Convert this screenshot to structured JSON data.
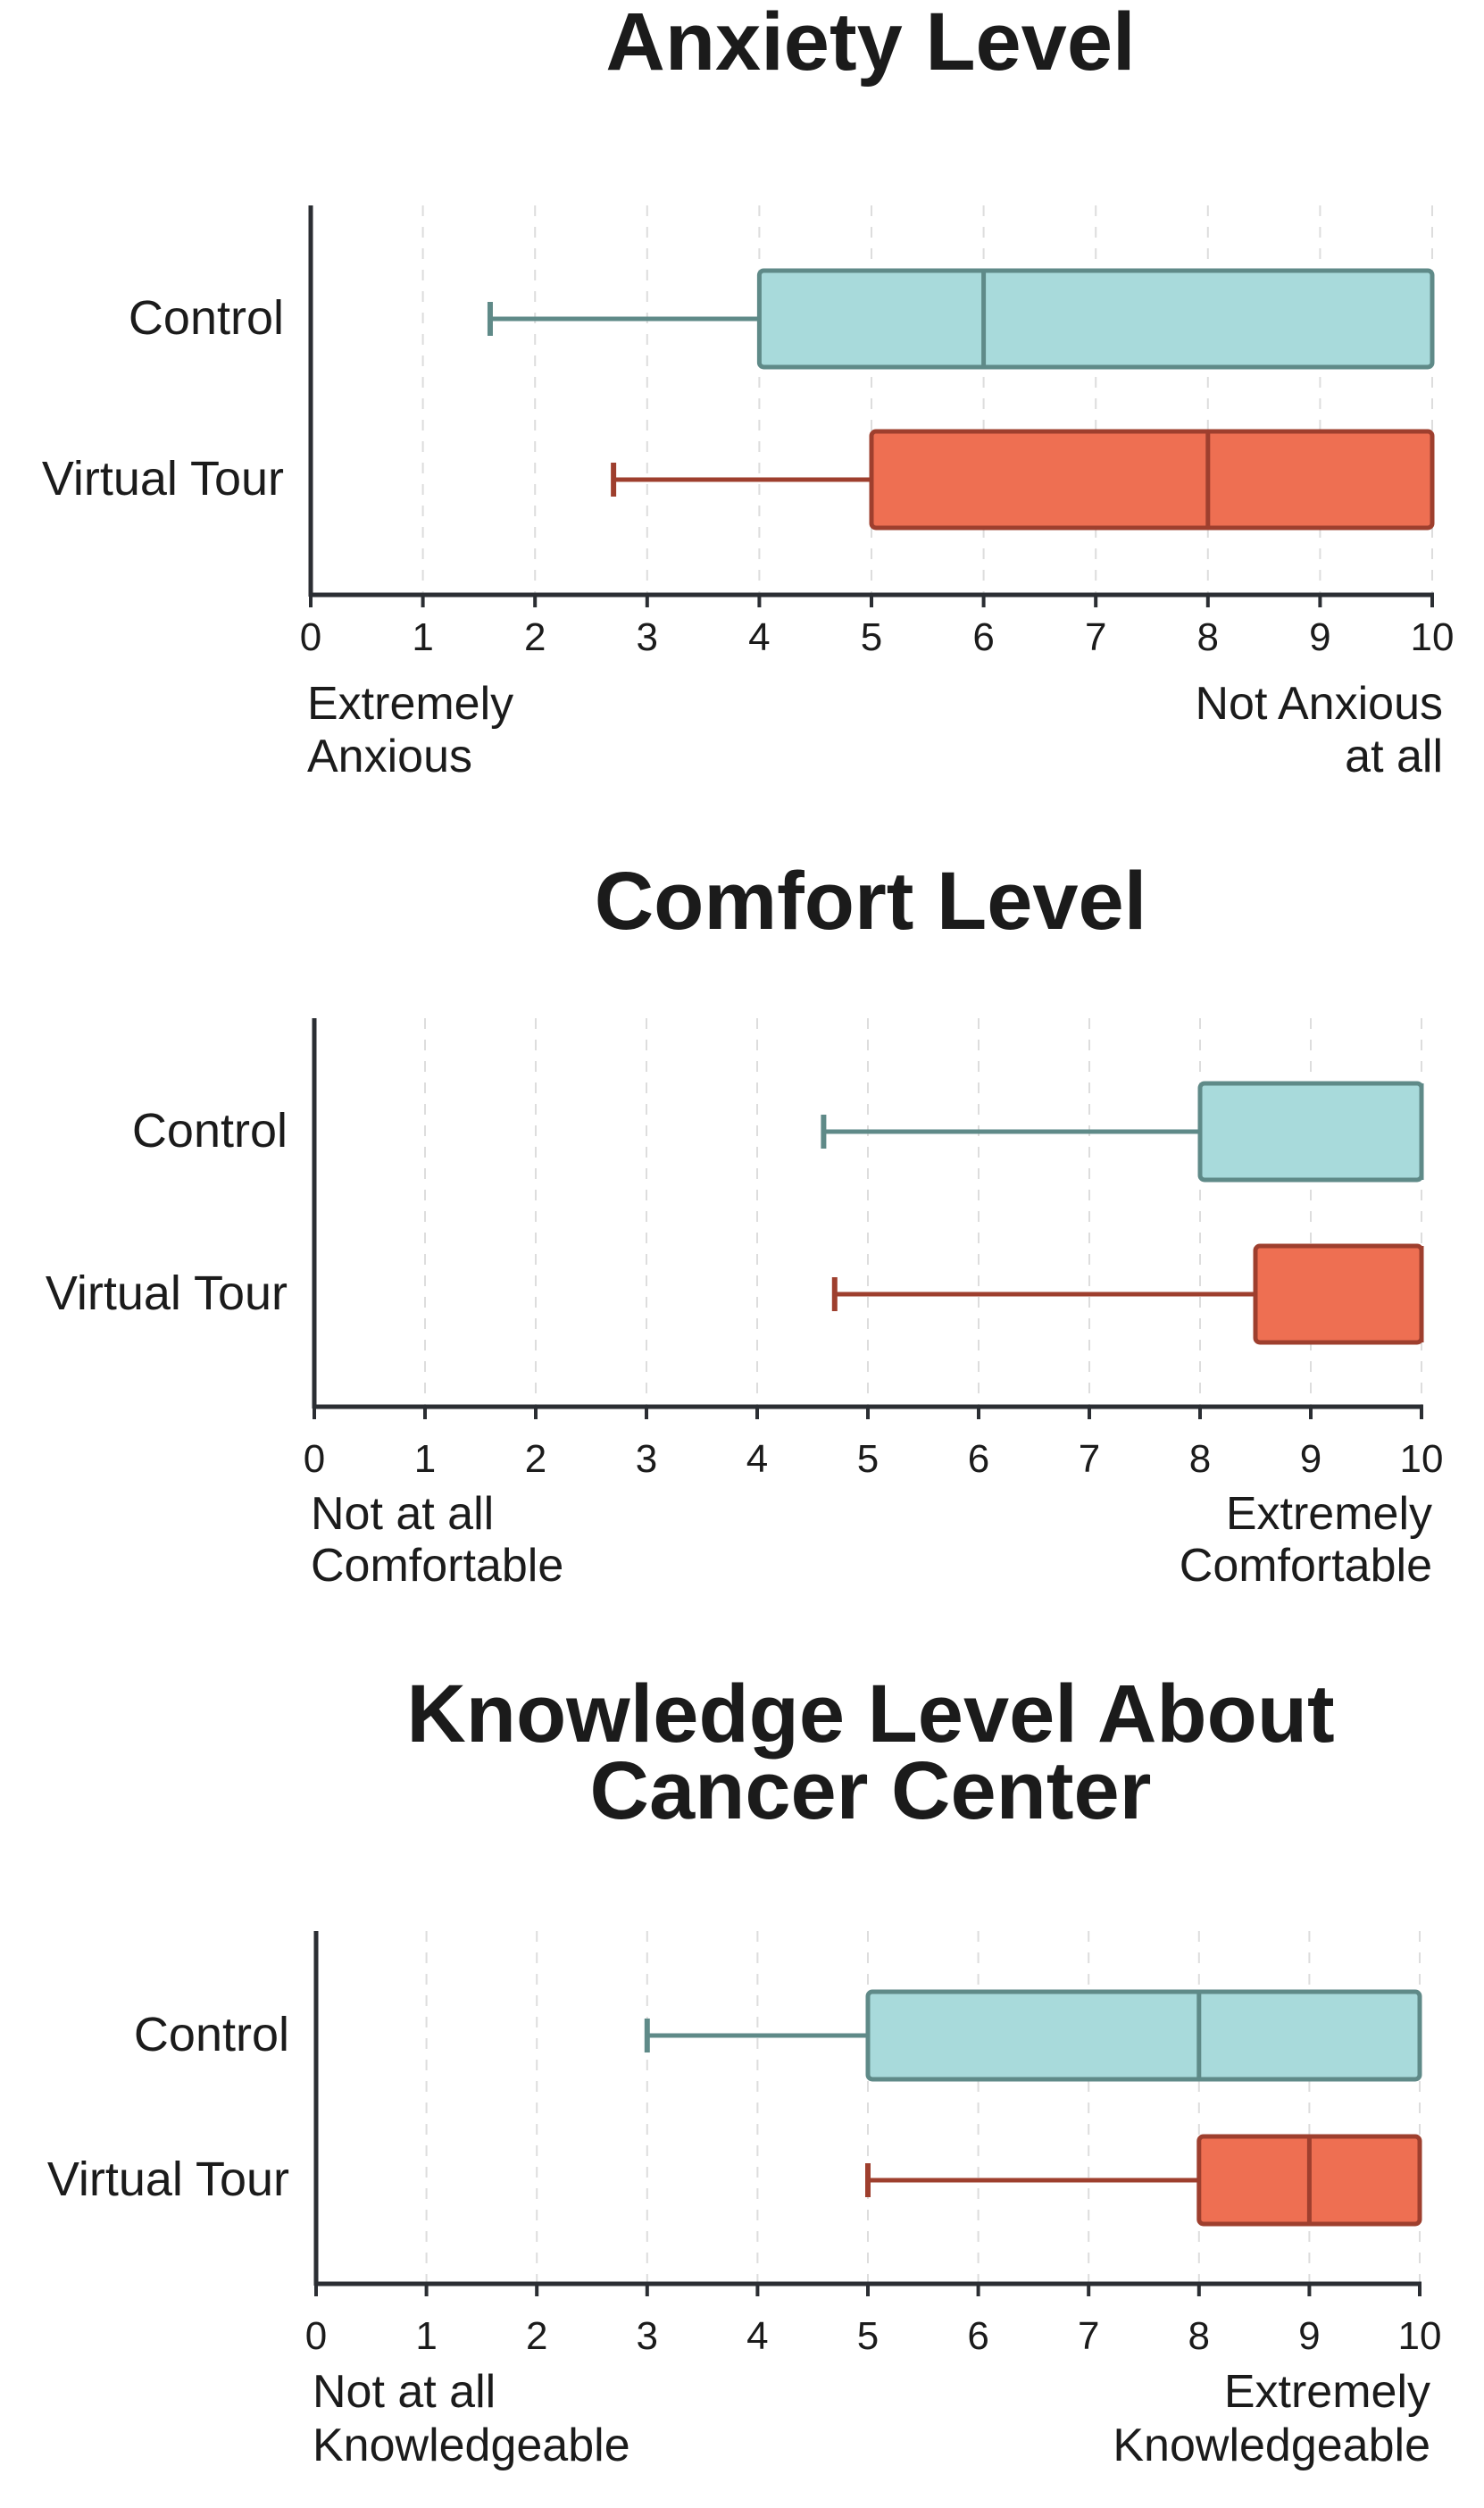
{
  "colors": {
    "control_fill": "#a8dadb",
    "control_stroke": "#5f8a88",
    "tour_fill": "#ee6f52",
    "tour_stroke": "#9e3f2e",
    "axis": "#2b2e33",
    "grid": "#dddddd"
  },
  "chart_data": [
    {
      "type": "box",
      "title": "Anxiety Level",
      "categories": [
        "Control",
        "Virtual Tour"
      ],
      "xlim": [
        0,
        10
      ],
      "xticks": [
        0,
        1,
        2,
        3,
        4,
        5,
        6,
        7,
        8,
        9,
        10
      ],
      "grid": "vertical dashed",
      "anchor_low": [
        "Extremely",
        "Anxious"
      ],
      "anchor_high": [
        "Not Anxious",
        "at all"
      ],
      "series": [
        {
          "category": "Control",
          "whisker_low": 1.6,
          "q1": 4,
          "median": 6,
          "q3": 10,
          "whisker_high": 10
        },
        {
          "category": "Virtual Tour",
          "whisker_low": 2.7,
          "q1": 5,
          "median": 8,
          "q3": 10,
          "whisker_high": 10
        }
      ]
    },
    {
      "type": "box",
      "title": "Comfort Level",
      "categories": [
        "Control",
        "Virtual Tour"
      ],
      "xlim": [
        0,
        10
      ],
      "xticks": [
        0,
        1,
        2,
        3,
        4,
        5,
        6,
        7,
        8,
        9,
        10
      ],
      "grid": "vertical dashed",
      "anchor_low": [
        "Not at all",
        "Comfortable"
      ],
      "anchor_high": [
        "Extremely",
        "Comfortable"
      ],
      "series": [
        {
          "category": "Control",
          "whisker_low": 4.6,
          "q1": 8,
          "median": 10,
          "q3": 10,
          "whisker_high": 10
        },
        {
          "category": "Virtual Tour",
          "whisker_low": 4.7,
          "q1": 8.5,
          "median": 10,
          "q3": 10,
          "whisker_high": 10
        }
      ]
    },
    {
      "type": "box",
      "title": "Knowledge Level About Cancer Center",
      "title_lines": [
        "Knowledge Level About",
        "Cancer Center"
      ],
      "categories": [
        "Control",
        "Virtual Tour"
      ],
      "xlim": [
        0,
        10
      ],
      "xticks": [
        0,
        1,
        2,
        3,
        4,
        5,
        6,
        7,
        8,
        9,
        10
      ],
      "grid": "vertical dashed",
      "anchor_low": [
        "Not at all",
        "Knowledgeable"
      ],
      "anchor_high": [
        "Extremely",
        "Knowledgeable"
      ],
      "series": [
        {
          "category": "Control",
          "whisker_low": 3,
          "q1": 5,
          "median": 8,
          "q3": 10,
          "whisker_high": 10
        },
        {
          "category": "Virtual Tour",
          "whisker_low": 5,
          "q1": 8,
          "median": 9,
          "q3": 10,
          "whisker_high": 10
        }
      ]
    }
  ]
}
